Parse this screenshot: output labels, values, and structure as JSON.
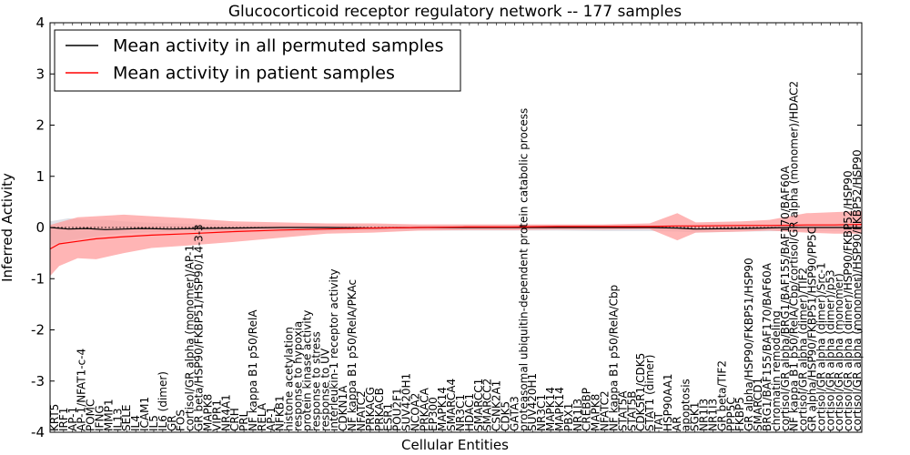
{
  "chart_data": {
    "type": "line",
    "title": "Glucocorticoid receptor regulatory network -- 177 samples",
    "xlabel": "Cellular Entities",
    "ylabel": "Inferred Activity",
    "ylim": [
      -4,
      4
    ],
    "yticks": [
      -4,
      -3,
      -2,
      -1,
      0,
      1,
      2,
      3,
      4
    ],
    "legend_position": "upper-left",
    "series": [
      {
        "name": "Mean activity in all permuted samples",
        "color": "#000000",
        "band_color": "#c7c9d4"
      },
      {
        "name": "Mean activity in patient samples",
        "color": "#ff0000",
        "band_color": "#ff9c9c"
      }
    ],
    "categories": [
      "KRT5",
      "IRF1",
      "AP-1",
      "AP-1/NFAT1-c-4",
      "POMC",
      "IFNG",
      "MMP1",
      "IL13",
      "SELE",
      "IL4",
      "ICAM1",
      "IL5",
      "IL6 (dimer)",
      "GR",
      "FOS",
      "cortisol/GR alpha (monomer)/AP-1",
      "GR beta/HSP90/FKBP51/HSP90/14-3-3",
      "MAPK8",
      "VIPR1",
      "NR4A1",
      "CRH",
      "PRL",
      "NF kappa B1 p50/RelA",
      "RELA",
      "AP-1",
      "NFKB1",
      "histone acetylation",
      "response to hypoxia",
      "protein kinase activity",
      "response to stress",
      "response to UV",
      "interleukin-1 receptor activity",
      "CDKN1A",
      "NF kappa B1 p50/RelA/PKAc",
      "NFATC2",
      "PRKACG",
      "PRKACB",
      "ESR1",
      "POU2F1",
      "SUV420H1",
      "NCOA2",
      "PRKACA",
      "EP300",
      "MAPK14",
      "SMARCA4",
      "NR3C1",
      "HDAC1",
      "SMARCC1",
      "SMARCC2",
      "CSNK2A1",
      "CDK5",
      "GATA3",
      "proteasomal ubiquitin-dependent protein catabolic process",
      "SUV420H1",
      "NR3C1",
      "MAPK14",
      "MAPK14",
      "PBX1",
      "NR1I3",
      "CREBBP",
      "MAPK8",
      "NFATC2",
      "NF kappa B1 p50/RelA/Cbp",
      "STAT5A",
      "STAT5B",
      "CDK5R1/CDK5",
      "STAT1 (dimer)",
      "TAT",
      "HSP90AA1",
      "AR",
      "apoptosis",
      "SGK1",
      "NR1I3",
      "NR1I3",
      "GR beta/TIF2",
      "PPP5C",
      "FKBP5",
      "GR alpha/HSP90/FKBP51/HSP90",
      "SMARCD1",
      "BRG1/BAF155/BAF170/BAF60A",
      "chromatin remodeling",
      "cortisol/GR alpha/BRG1/BAF155/BAF170/BAF60A",
      "NF kappa B1 p50/RelA/Cbp/cortisol/GR alpha (monomer)/HDAC2",
      "cortisol/GR alpha (dimer)/TIF2",
      "GR alpha/HSP90/FKBP51/HSP90/PP5C",
      "cortisol/GR alpha (dimer)/Src-1",
      "cortisol/GR alpha (dimer)/p53",
      "cortisol/GR alpha (monomer)",
      "cortisol/GR alpha (dimer)/HSP90/FKBP52/HSP90",
      "cortisol/GR alpha (monomer)/HSP90/FKBP52/HSP90"
    ],
    "permuted_mean": {
      "x": [
        0,
        4,
        8,
        12,
        16,
        20,
        26,
        32,
        40,
        50,
        60,
        70,
        80,
        90,
        100,
        110,
        120,
        130,
        136,
        140,
        150,
        160,
        176
      ],
      "y": [
        0.0,
        -0.03,
        -0.02,
        -0.04,
        -0.03,
        -0.02,
        -0.03,
        -0.02,
        -0.01,
        0.0,
        0.0,
        -0.01,
        0.0,
        0.0,
        0.0,
        0.0,
        0.0,
        0.0,
        -0.01,
        -0.03,
        -0.02,
        0.0,
        0.0
      ],
      "band_low": [
        -0.35,
        -0.25,
        -0.2,
        -0.15,
        -0.12,
        -0.1,
        -0.08,
        -0.07,
        -0.08,
        -0.08,
        -0.07,
        -0.06,
        -0.06,
        -0.06,
        -0.06,
        -0.06,
        -0.07,
        -0.07,
        -0.08,
        -0.1,
        -0.08,
        -0.07,
        -0.07
      ],
      "band_high": [
        0.12,
        0.18,
        0.15,
        0.15,
        0.12,
        0.1,
        0.08,
        0.07,
        0.06,
        0.05,
        0.05,
        0.05,
        0.05,
        0.05,
        0.05,
        0.05,
        0.05,
        0.05,
        0.05,
        0.06,
        0.06,
        0.06,
        0.06
      ]
    },
    "patient_mean": {
      "x": [
        0,
        2,
        6,
        10,
        16,
        22,
        30,
        40,
        50,
        60,
        70,
        80,
        90,
        100,
        110,
        120,
        130,
        136,
        140,
        150,
        156,
        164,
        170,
        176
      ],
      "y": [
        -0.42,
        -0.32,
        -0.27,
        -0.22,
        -0.18,
        -0.15,
        -0.12,
        -0.08,
        -0.05,
        -0.03,
        -0.01,
        0.0,
        0.01,
        0.01,
        0.02,
        0.02,
        0.02,
        0.03,
        0.03,
        0.04,
        0.04,
        0.05,
        0.05,
        0.06
      ],
      "band_low": [
        -0.95,
        -0.75,
        -0.6,
        -0.62,
        -0.5,
        -0.4,
        -0.35,
        -0.28,
        -0.2,
        -0.12,
        -0.1,
        -0.06,
        -0.05,
        -0.05,
        -0.04,
        -0.04,
        -0.03,
        -0.25,
        -0.1,
        -0.08,
        -0.06,
        -0.1,
        -0.12,
        -0.12
      ],
      "band_high": [
        0.05,
        0.1,
        0.2,
        0.22,
        0.25,
        0.22,
        0.18,
        0.12,
        0.1,
        0.08,
        0.08,
        0.06,
        0.06,
        0.06,
        0.06,
        0.06,
        0.08,
        0.28,
        0.1,
        0.12,
        0.15,
        0.28,
        0.3,
        0.32
      ]
    }
  }
}
